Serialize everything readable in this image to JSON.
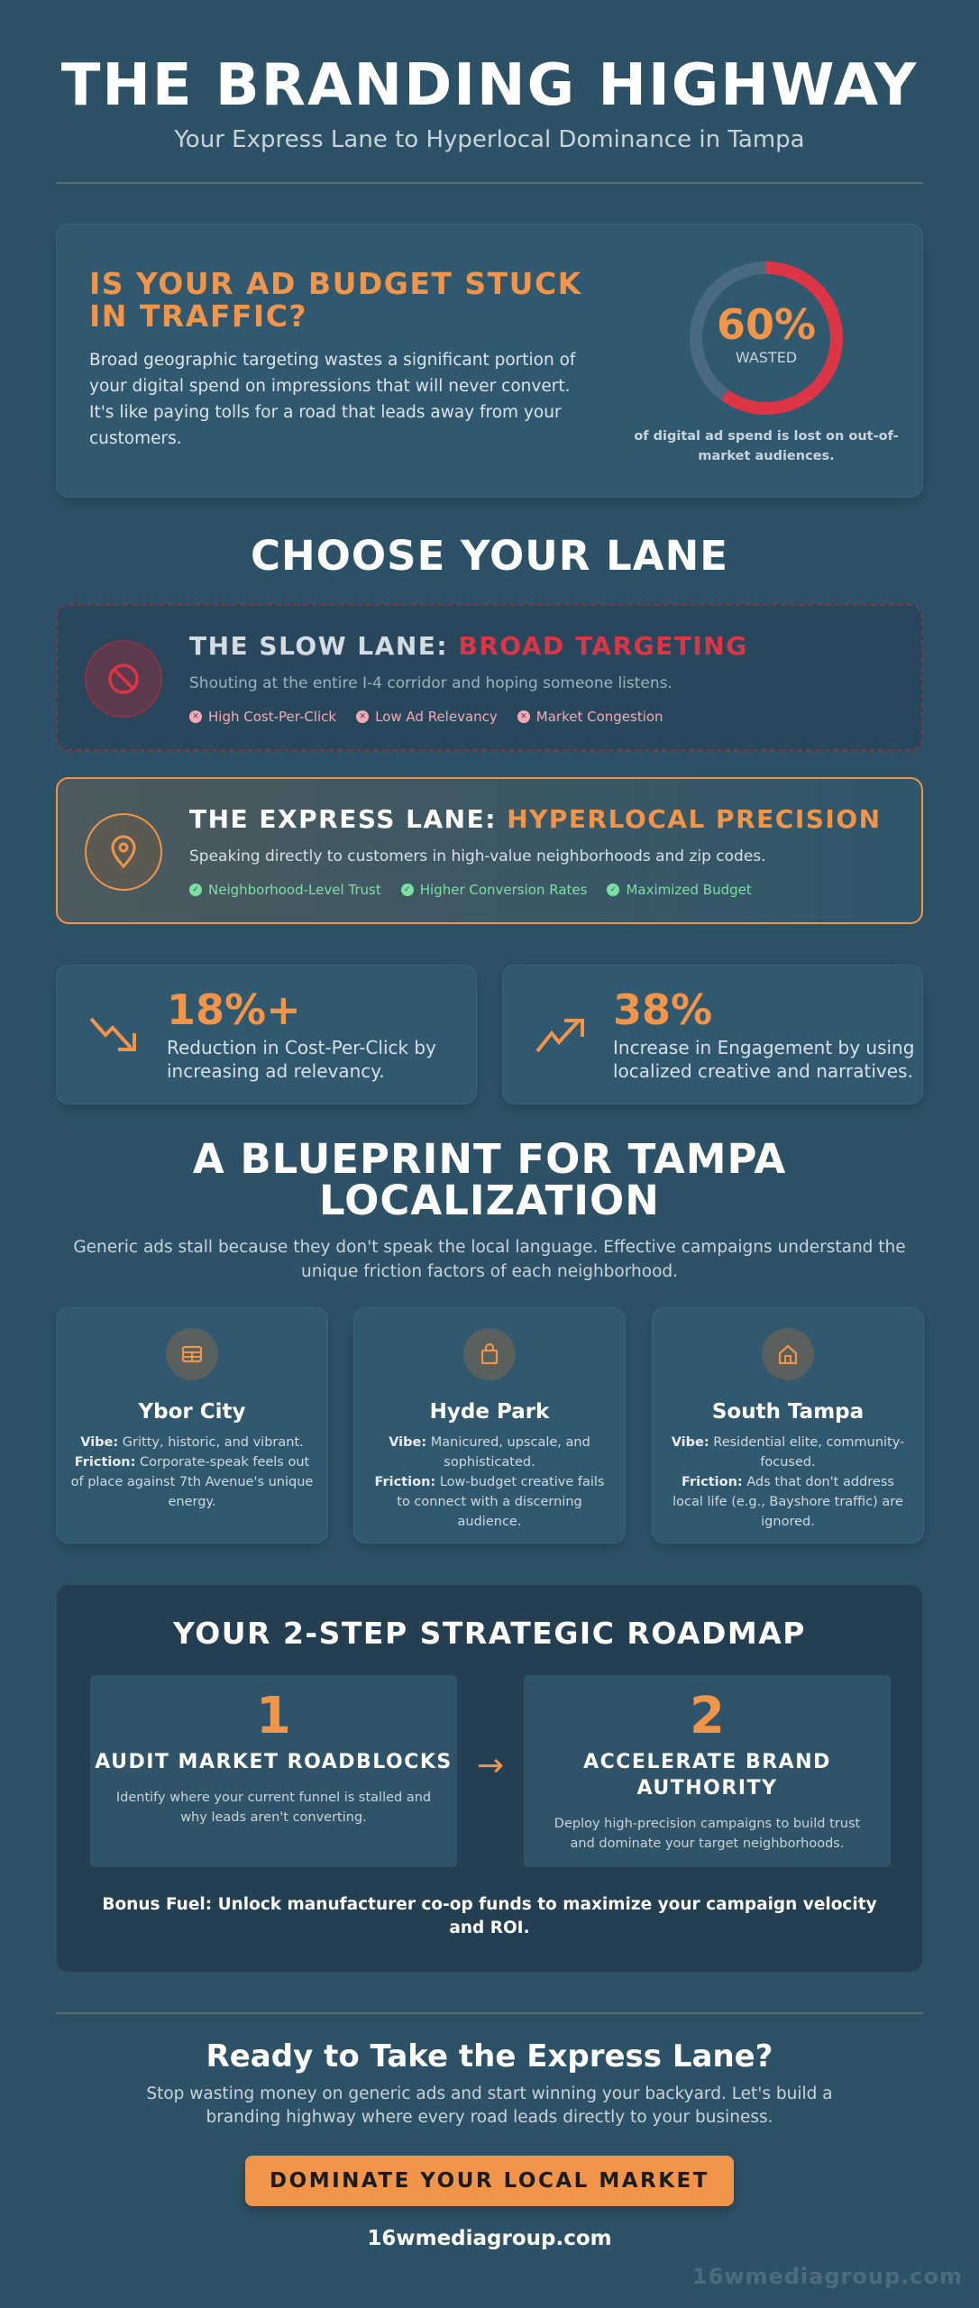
{
  "header": {
    "title": "THE BRANDING HIGHWAY",
    "subtitle": "Your Express Lane to Hyperlocal Dominance in Tampa"
  },
  "problem": {
    "title": "IS YOUR AD BUDGET STUCK IN TRAFFIC?",
    "body": "Broad geographic targeting wastes a significant portion of your digital spend on impressions that will never convert. It's like paying tolls for a road that leads away from your customers.",
    "gauge_value": "60%",
    "gauge_percent": 60,
    "gauge_label": "WASTED",
    "gauge_caption": "of digital ad spend is lost on out-of-market audiences.",
    "colors": {
      "gauge": "#dc3545",
      "track": "#4a6a80"
    }
  },
  "lanes": {
    "title": "CHOOSE YOUR LANE",
    "slow": {
      "prefix": "THE SLOW LANE:",
      "highlight": "BROAD TARGETING",
      "desc": "Shouting at the entire I-4 corridor and hoping someone listens.",
      "icon": "ban-icon",
      "tags": [
        "High Cost-Per-Click",
        "Low Ad Relevancy",
        "Market Congestion"
      ]
    },
    "express": {
      "prefix": "THE EXPRESS LANE:",
      "highlight": "HYPERLOCAL PRECISION",
      "desc": "Speaking directly to customers in high-value neighborhoods and zip codes.",
      "icon": "map-pin-icon",
      "tags": [
        "Neighborhood-Level Trust",
        "Higher Conversion Rates",
        "Maximized Budget"
      ]
    }
  },
  "stats": [
    {
      "value": "18%+",
      "text": "Reduction in Cost-Per-Click by increasing ad relevancy.",
      "icon": "trend-down-icon"
    },
    {
      "value": "38%",
      "text": "Increase in Engagement by using localized creative and narratives.",
      "icon": "trend-up-icon"
    }
  ],
  "blueprint": {
    "title": "A BLUEPRINT FOR TAMPA LOCALIZATION",
    "desc": "Generic ads stall because they don't speak the local language. Effective campaigns understand the unique friction factors of each neighborhood.",
    "vibe_label": "Vibe:",
    "friction_label": "Friction:",
    "neighborhoods": [
      {
        "name": "Ybor City",
        "icon": "building-icon",
        "vibe": "Gritty, historic, and vibrant.",
        "friction": "Corporate-speak feels out of place against 7th Avenue's unique energy."
      },
      {
        "name": "Hyde Park",
        "icon": "shopping-bag-icon",
        "vibe": "Manicured, upscale, and sophisticated.",
        "friction": "Low-budget creative fails to connect with a discerning audience."
      },
      {
        "name": "South Tampa",
        "icon": "home-icon",
        "vibe": "Residential elite, community-focused.",
        "friction": "Ads that don't address local life (e.g., Bayshore traffic) are ignored."
      }
    ]
  },
  "roadmap": {
    "title": "YOUR 2-STEP STRATEGIC ROADMAP",
    "steps": [
      {
        "num": "1",
        "title": "AUDIT MARKET ROADBLOCKS",
        "desc": "Identify where your current funnel is stalled and why leads aren't converting."
      },
      {
        "num": "2",
        "title": "ACCELERATE BRAND AUTHORITY",
        "desc": "Deploy high-precision campaigns to build trust and dominate your target neighborhoods."
      }
    ],
    "arrow": "→",
    "bonus": "Bonus Fuel: Unlock manufacturer co-op funds to maximize your campaign velocity and ROI."
  },
  "cta": {
    "title": "Ready to Take the Express Lane?",
    "desc": "Stop wasting money on generic ads and start winning your backyard. Let's build a branding highway where every road leads directly to your business.",
    "button": "DOMINATE YOUR LOCAL MARKET",
    "url": "16wmediagroup.com",
    "watermark": "16wmediagroup.com"
  },
  "colors": {
    "accent": "#f0954a",
    "danger": "#dc3545",
    "success": "#7be0a0",
    "background": "#2d5267"
  }
}
